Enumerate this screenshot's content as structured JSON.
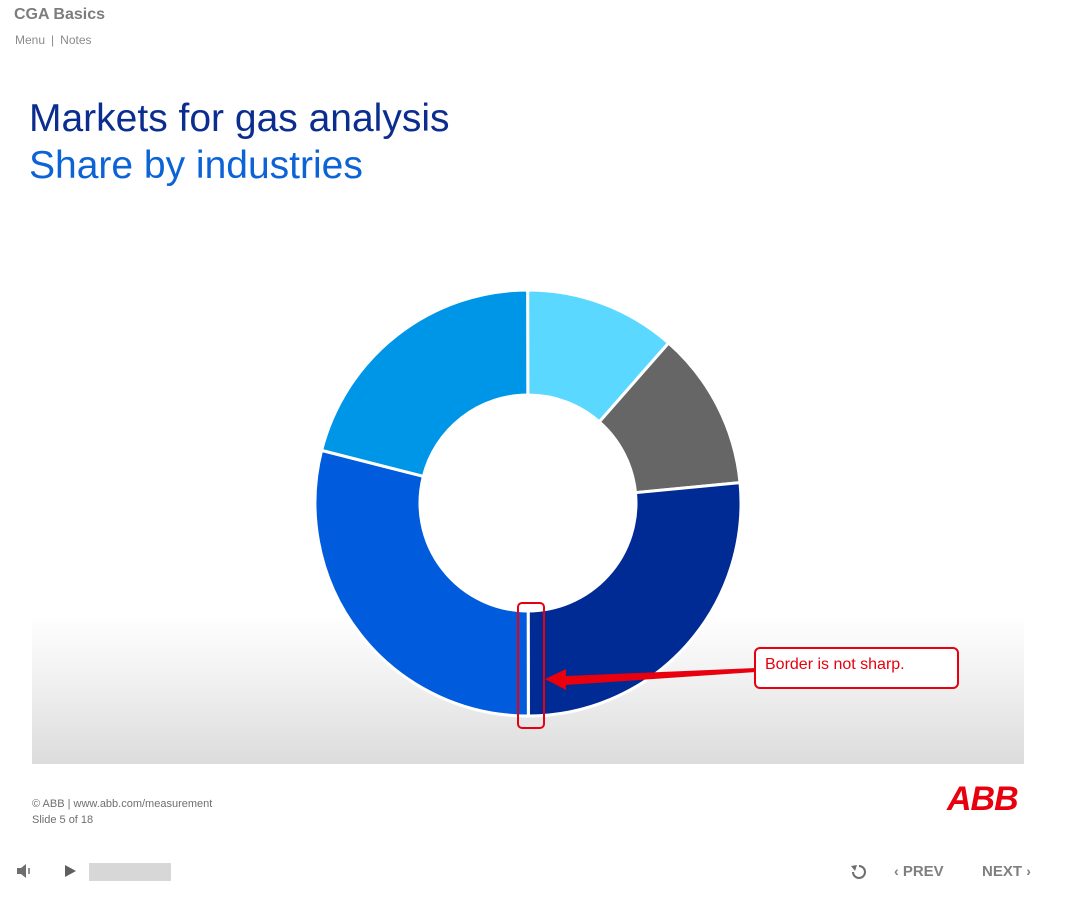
{
  "header": {
    "course_title": "CGA Basics",
    "menu_label": "Menu",
    "separator": "|",
    "notes_label": "Notes"
  },
  "slide": {
    "title_line1": "Markets for gas analysis",
    "title_line2": "Share by industries"
  },
  "chart_data": {
    "type": "pie",
    "variant": "donut",
    "title": "",
    "segments": [
      {
        "value": 11.5,
        "color": "#5ad8ff"
      },
      {
        "value": 12.0,
        "color": "#666666"
      },
      {
        "value": 26.5,
        "color": "#002a94"
      },
      {
        "value": 29.0,
        "color": "#005bdd"
      },
      {
        "value": 21.0,
        "color": "#0096e8"
      }
    ]
  },
  "annotation": {
    "callout_text": "Border is not sharp.",
    "color": "#e8000f"
  },
  "footer": {
    "copyright": "© ABB | www.abb.com/measurement",
    "slide_counter": "Slide 5 of 18",
    "logo_text": "ABB"
  },
  "player": {
    "volume_icon": "speaker-icon",
    "play_icon": "play-icon",
    "replay_icon": "replay-icon",
    "prev_label": "PREV",
    "next_label": "NEXT",
    "prev_chevron": "‹",
    "next_chevron": "›"
  }
}
